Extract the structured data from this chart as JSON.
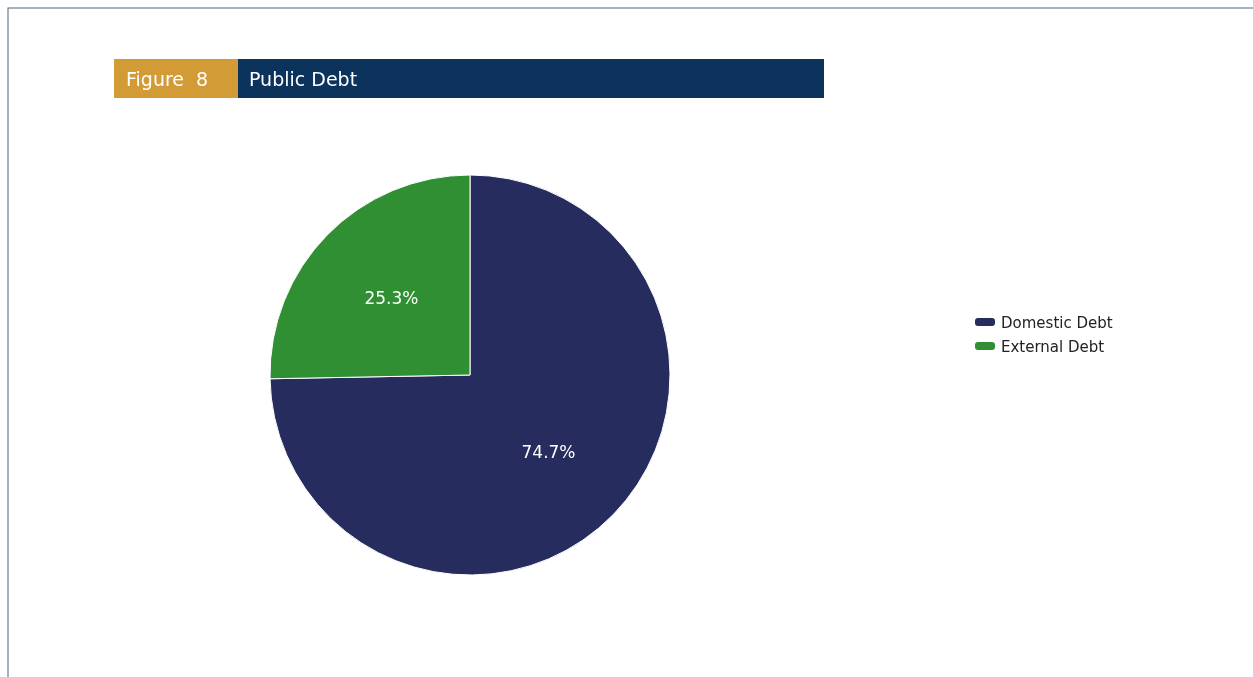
{
  "chart_data": {
    "type": "pie",
    "title": "Public Debt",
    "annotations": [
      "Figure  8"
    ],
    "categories": [
      "Domestic Debt",
      "External Debt"
    ],
    "values": [
      74.7,
      25.3
    ],
    "colors": [
      "#262d5e",
      "#2f8f32"
    ],
    "value_labels": [
      "74.7%",
      "25.3%"
    ],
    "legend": "right"
  }
}
